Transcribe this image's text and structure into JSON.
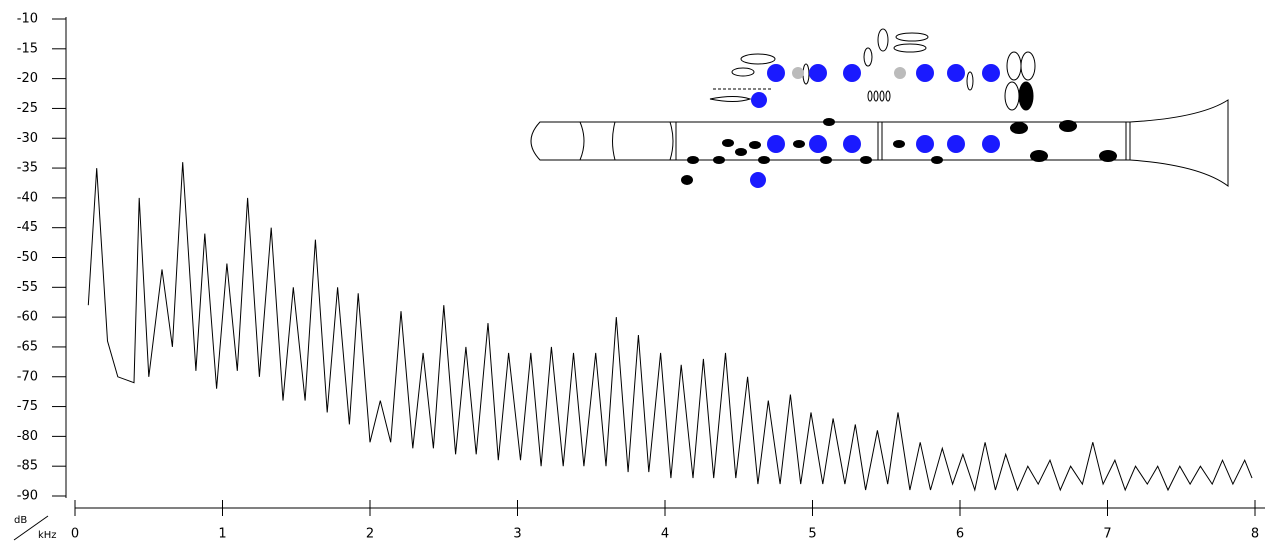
{
  "chart_data": {
    "type": "line",
    "x_label": "kHz",
    "y_label": "dB",
    "xlim": [
      0,
      8
    ],
    "xticks": [
      0,
      1,
      2,
      3,
      4,
      5,
      6,
      7,
      8
    ],
    "ylim": [
      -90,
      -10
    ],
    "yticks": [
      -90,
      -85,
      -80,
      -75,
      -70,
      -65,
      -60,
      -55,
      -50,
      -45,
      -40,
      -35,
      -30,
      -25,
      -20,
      -15,
      -10
    ],
    "series": [
      {
        "color": "#000000",
        "x": [
          0.09,
          0.147,
          0.22,
          0.29,
          0.4,
          0.435,
          0.5,
          0.59,
          0.66,
          0.73,
          0.82,
          0.88,
          0.96,
          1.03,
          1.1,
          1.17,
          1.25,
          1.33,
          1.41,
          1.48,
          1.56,
          1.63,
          1.71,
          1.78,
          1.86,
          1.92,
          2.0,
          2.07,
          2.14,
          2.21,
          2.29,
          2.36,
          2.43,
          2.5,
          2.58,
          2.65,
          2.72,
          2.8,
          2.87,
          2.94,
          3.02,
          3.09,
          3.16,
          3.23,
          3.31,
          3.38,
          3.45,
          3.53,
          3.6,
          3.67,
          3.75,
          3.82,
          3.89,
          3.97,
          4.04,
          4.11,
          4.19,
          4.26,
          4.33,
          4.41,
          4.48,
          4.56,
          4.63,
          4.7,
          4.78,
          4.85,
          4.92,
          4.99,
          5.07,
          5.14,
          5.22,
          5.29,
          5.36,
          5.44,
          5.51,
          5.58,
          5.66,
          5.73,
          5.8,
          5.88,
          5.95,
          6.02,
          6.1,
          6.17,
          6.24,
          6.31,
          6.39,
          6.46,
          6.53,
          6.61,
          6.68,
          6.75,
          6.83,
          6.9,
          6.97,
          7.05,
          7.12,
          7.19,
          7.27,
          7.34,
          7.41,
          7.49,
          7.56,
          7.63,
          7.71,
          7.78,
          7.85,
          7.93,
          7.98
        ],
        "values": [
          -58,
          -35,
          -64,
          -70,
          -71,
          -40,
          -70,
          -52,
          -65,
          -34,
          -69,
          -46,
          -72,
          -51,
          -69,
          -40,
          -70,
          -45,
          -74,
          -55,
          -74,
          -47,
          -76,
          -55,
          -78,
          -56,
          -81,
          -74,
          -81,
          -59,
          -82,
          -66,
          -82,
          -58,
          -83,
          -65,
          -83,
          -61,
          -84,
          -66,
          -84,
          -66,
          -85,
          -65,
          -85,
          -66,
          -85,
          -66,
          -85,
          -60,
          -86,
          -63,
          -86,
          -66,
          -87,
          -68,
          -87,
          -67,
          -87,
          -66,
          -87,
          -70,
          -88,
          -74,
          -88,
          -73,
          -88,
          -76,
          -88,
          -77,
          -88,
          -78,
          -89,
          -79,
          -88,
          -76,
          -89,
          -81,
          -89,
          -82,
          -88,
          -83,
          -89,
          -81,
          -89,
          -83,
          -89,
          -85,
          -88,
          -84,
          -89,
          -85,
          -88,
          -81,
          -88,
          -84,
          -89,
          -85,
          -88,
          -85,
          -89,
          -85,
          -88,
          -85,
          -88,
          -84,
          -88,
          -84,
          -87
        ]
      }
    ]
  }
}
